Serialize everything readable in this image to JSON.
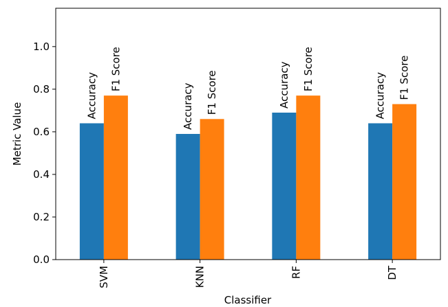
{
  "chart_data": {
    "type": "bar",
    "title": "",
    "xlabel": "Classifier",
    "ylabel": "Metric Value",
    "categories": [
      "SVM",
      "KNN",
      "RF",
      "DT"
    ],
    "series": [
      {
        "name": "Accuracy",
        "values": [
          0.64,
          0.59,
          0.69,
          0.64
        ],
        "color": "#1f77b4"
      },
      {
        "name": "F1 Score",
        "values": [
          0.77,
          0.66,
          0.77,
          0.73
        ],
        "color": "#ff7f0e"
      }
    ],
    "ylim": [
      0,
      1.18
    ],
    "yticks": [
      "0.0",
      "0.2",
      "0.4",
      "0.6",
      "0.8",
      "1.0"
    ],
    "grid": false,
    "legend": "none",
    "bar_labels": true
  }
}
